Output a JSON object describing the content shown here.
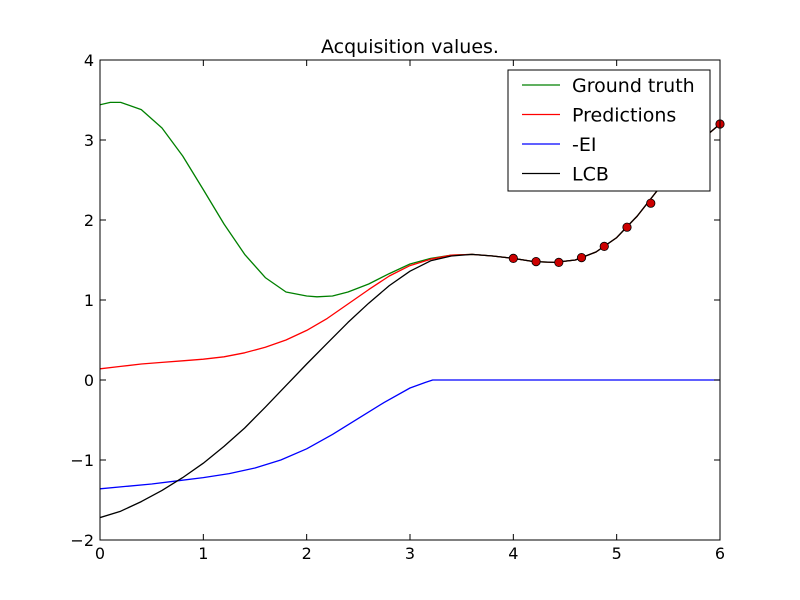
{
  "chart_data": {
    "type": "line",
    "title": "Acquisition values.",
    "xlabel": "",
    "ylabel": "",
    "xlim": [
      0,
      6
    ],
    "ylim": [
      -2,
      4
    ],
    "xticks": [
      0,
      1,
      2,
      3,
      4,
      5,
      6
    ],
    "yticks": [
      -2,
      -1,
      0,
      1,
      2,
      3,
      4
    ],
    "ytick_labels": [
      "−2",
      "−1",
      "0",
      "1",
      "2",
      "3",
      "4"
    ],
    "legend_position": "top-right",
    "grid": false,
    "series": [
      {
        "name": "Ground truth",
        "color": "#008000",
        "x": [
          0,
          0.1,
          0.2,
          0.4,
          0.6,
          0.8,
          1.0,
          1.2,
          1.4,
          1.6,
          1.8,
          2.0,
          2.1,
          2.25,
          2.4,
          2.6,
          2.8,
          3.0,
          3.2,
          3.4,
          3.6,
          3.8,
          4.0,
          4.2,
          4.4,
          4.6,
          4.8,
          5.0,
          5.2,
          5.4,
          5.6,
          5.8,
          6.0
        ],
        "y": [
          3.44,
          3.47,
          3.47,
          3.38,
          3.15,
          2.8,
          2.38,
          1.95,
          1.57,
          1.28,
          1.1,
          1.05,
          1.04,
          1.05,
          1.1,
          1.2,
          1.33,
          1.45,
          1.52,
          1.56,
          1.57,
          1.55,
          1.52,
          1.48,
          1.47,
          1.5,
          1.6,
          1.78,
          2.05,
          2.38,
          2.7,
          2.98,
          3.2
        ]
      },
      {
        "name": "Predictions",
        "color": "#ff0000",
        "x": [
          0,
          0.2,
          0.4,
          0.6,
          0.8,
          1.0,
          1.2,
          1.4,
          1.6,
          1.8,
          2.0,
          2.2,
          2.4,
          2.6,
          2.8,
          3.0,
          3.2,
          3.4,
          3.6,
          3.8,
          4.0,
          4.2,
          4.4,
          4.6,
          4.8,
          5.0,
          5.2,
          5.4,
          5.6,
          5.8,
          6.0
        ],
        "y": [
          0.14,
          0.17,
          0.2,
          0.22,
          0.24,
          0.26,
          0.29,
          0.34,
          0.41,
          0.5,
          0.62,
          0.77,
          0.95,
          1.13,
          1.3,
          1.43,
          1.51,
          1.56,
          1.57,
          1.55,
          1.52,
          1.48,
          1.47,
          1.5,
          1.6,
          1.78,
          2.05,
          2.38,
          2.7,
          2.98,
          3.2
        ]
      },
      {
        "name": "-EI",
        "color": "#0000ff",
        "x": [
          0,
          0.25,
          0.5,
          0.75,
          1.0,
          1.25,
          1.5,
          1.75,
          2.0,
          2.25,
          2.5,
          2.75,
          3.0,
          3.15,
          3.22,
          3.25,
          4.0,
          5.0,
          6.0
        ],
        "y": [
          -1.36,
          -1.33,
          -1.3,
          -1.26,
          -1.22,
          -1.17,
          -1.1,
          -1.0,
          -0.86,
          -0.68,
          -0.48,
          -0.28,
          -0.1,
          -0.03,
          0.0,
          0.0,
          0.0,
          0.0,
          0.0
        ]
      },
      {
        "name": "LCB",
        "color": "#000000",
        "x": [
          0,
          0.2,
          0.4,
          0.6,
          0.8,
          1.0,
          1.2,
          1.4,
          1.6,
          1.8,
          2.0,
          2.2,
          2.4,
          2.6,
          2.8,
          3.0,
          3.2,
          3.4,
          3.6,
          3.8,
          4.0,
          4.2,
          4.4,
          4.6,
          4.8,
          5.0,
          5.2,
          5.4,
          5.6,
          5.8,
          6.0
        ],
        "y": [
          -1.72,
          -1.64,
          -1.52,
          -1.38,
          -1.22,
          -1.04,
          -0.83,
          -0.6,
          -0.34,
          -0.07,
          0.2,
          0.46,
          0.72,
          0.96,
          1.18,
          1.36,
          1.49,
          1.55,
          1.57,
          1.55,
          1.52,
          1.48,
          1.47,
          1.5,
          1.6,
          1.78,
          2.05,
          2.38,
          2.7,
          2.98,
          3.2
        ]
      }
    ],
    "observations": {
      "color": "#cc0000",
      "x": [
        4.0,
        4.22,
        4.44,
        4.66,
        4.88,
        5.1,
        5.33,
        6.0
      ],
      "y": [
        1.52,
        1.48,
        1.47,
        1.53,
        1.67,
        1.91,
        2.21,
        3.2
      ]
    }
  }
}
